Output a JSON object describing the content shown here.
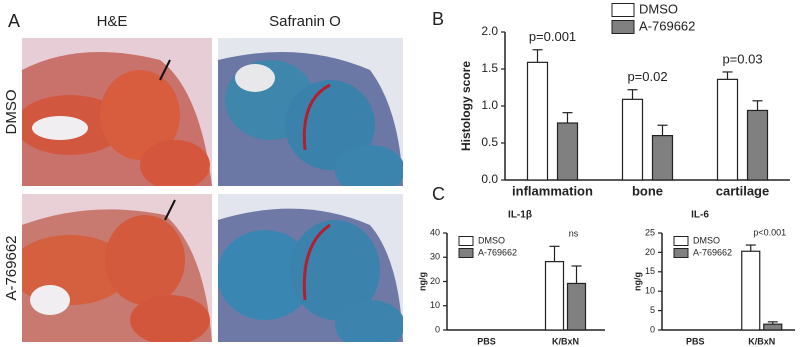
{
  "panel_a": {
    "label": "A",
    "columns": [
      "H&E",
      "Safranin O"
    ],
    "rows": [
      "DMSO",
      "A-769662"
    ]
  },
  "chart_data": [
    {
      "type": "bar",
      "panel_label": "B",
      "ylabel": "Histology score",
      "categories": [
        "inflammation",
        "bone",
        "cartilage"
      ],
      "series": [
        {
          "name": "DMSO",
          "color": "#ffffff",
          "values": [
            1.59,
            1.09,
            1.36
          ],
          "errors": [
            0.17,
            0.13,
            0.1
          ]
        },
        {
          "name": "A-769662",
          "color": "#808080",
          "values": [
            0.77,
            0.6,
            0.94
          ],
          "errors": [
            0.14,
            0.14,
            0.13
          ]
        }
      ],
      "annotations": [
        "p=0.001",
        "p=0.02",
        "p=0.03"
      ],
      "ylim": [
        0,
        2
      ],
      "yticks": [
        {
          "value": 0,
          "label": "0.0"
        },
        0.5,
        {
          "value": 1,
          "label": "1.0"
        },
        1.5,
        {
          "value": 2,
          "label": "2.0"
        }
      ],
      "legend": "top"
    },
    {
      "type": "bar",
      "panel_label": "C",
      "title": "IL-1β",
      "ylabel": "ng/g",
      "categories": [
        "PBS",
        "K/BxN"
      ],
      "series": [
        {
          "name": "DMSO",
          "color": "#ffffff",
          "values": [
            0,
            28.2
          ],
          "errors": [
            null,
            6.3
          ]
        },
        {
          "name": "A-769662",
          "color": "#808080",
          "values": [
            0,
            19.2
          ],
          "errors": [
            null,
            7.2
          ]
        }
      ],
      "annotations": [
        null,
        "ns"
      ],
      "ylim": [
        0,
        40
      ],
      "yticks": [
        0,
        10,
        20,
        30,
        40
      ],
      "legend": "upper left"
    },
    {
      "type": "bar",
      "title": "IL-6",
      "ylabel": "ng/g",
      "categories": [
        "PBS",
        "K/BxN"
      ],
      "series": [
        {
          "name": "DMSO",
          "color": "#ffffff",
          "values": [
            0,
            20.3
          ],
          "errors": [
            null,
            1.6
          ]
        },
        {
          "name": "A-769662",
          "color": "#808080",
          "values": [
            0,
            1.5
          ],
          "errors": [
            null,
            0.6
          ]
        }
      ],
      "annotations": [
        null,
        "p<0.001"
      ],
      "ylim": [
        0,
        25
      ],
      "yticks": [
        0,
        5,
        10,
        15,
        20,
        25
      ],
      "legend": "upper left"
    }
  ]
}
